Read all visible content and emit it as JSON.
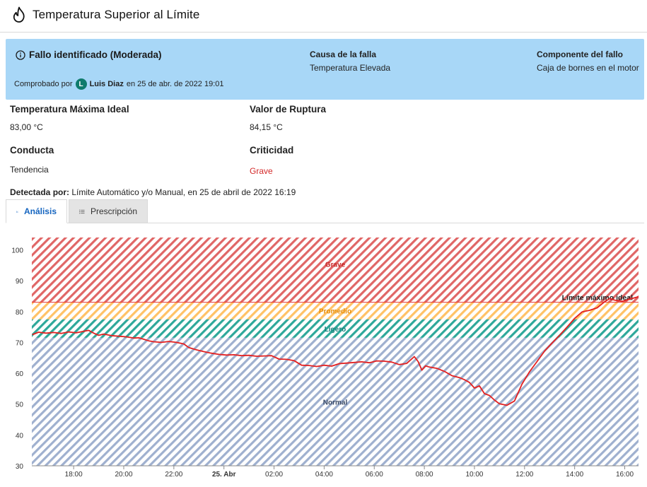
{
  "header": {
    "title": "Temperatura Superior al Límite",
    "icon": "flame-icon"
  },
  "banner": {
    "title": "Fallo identificado (Moderada)",
    "cause_label": "Causa de la falla",
    "cause_value": "Temperatura Elevada",
    "component_label": "Componente del fallo",
    "component_value": "Caja de bornes en el motor",
    "checked_prefix": "Comprobado por",
    "avatar_letter": "L",
    "user_name": "Luis Diaz",
    "checked_suffix": "en 25 de abr. de 2022 19:01",
    "bg_color": "#a8d7f7"
  },
  "fields": {
    "max_temp_label": "Temperatura Máxima Ideal",
    "max_temp_value": "83,00 °C",
    "rupture_label": "Valor de Ruptura",
    "rupture_value": "84,15 °C",
    "behavior_label": "Conducta",
    "behavior_value": "Tendencia",
    "criticality_label": "Criticidad",
    "criticality_value": "Grave"
  },
  "detected": {
    "label": "Detectada por:",
    "value": "Límite Automático y/o Manual, en 25 de abril de 2022 16:19"
  },
  "tabs": [
    {
      "label": "Análisis",
      "active": true
    },
    {
      "label": "Prescripción",
      "active": false
    }
  ],
  "chart_data": {
    "type": "line",
    "title": "",
    "xlabel": "",
    "ylabel": "",
    "ylim": [
      30,
      104
    ],
    "xlim": [
      16.33,
      40.55
    ],
    "yticks": [
      30,
      40,
      50,
      60,
      70,
      80,
      90,
      100
    ],
    "xticks": [
      {
        "x": 18,
        "label": "18:00"
      },
      {
        "x": 20,
        "label": "20:00"
      },
      {
        "x": 22,
        "label": "22:00"
      },
      {
        "x": 24,
        "label": "25. Abr"
      },
      {
        "x": 26,
        "label": "02:00"
      },
      {
        "x": 28,
        "label": "04:00"
      },
      {
        "x": 30,
        "label": "06:00"
      },
      {
        "x": 32,
        "label": "08:00"
      },
      {
        "x": 34,
        "label": "10:00"
      },
      {
        "x": 36,
        "label": "12:00"
      },
      {
        "x": 38,
        "label": "14:00"
      },
      {
        "x": 40,
        "label": "16:00"
      }
    ],
    "bands": [
      {
        "name": "Normal",
        "from": 30,
        "to": 71.5,
        "color": "#9fb0cf",
        "label_color": "#3b4a66"
      },
      {
        "name": "Ligero",
        "from": 71.5,
        "to": 77.5,
        "color": "#2ea89a",
        "label_color": "#15807a"
      },
      {
        "name": "Promedio",
        "from": 77.5,
        "to": 83,
        "color": "#ffc266",
        "label_color": "#e68a00"
      },
      {
        "name": "Grave",
        "from": 83,
        "to": 104,
        "color": "#e06666",
        "label_color": "#c62828"
      }
    ],
    "limit_line": {
      "value": 83,
      "label": "Límite máximo ideal",
      "color": "#e53935"
    },
    "series": [
      {
        "name": "Temperatura",
        "color": "#e32020",
        "x": [
          16.35,
          16.6,
          16.9,
          17.2,
          17.5,
          17.8,
          18.1,
          18.4,
          18.6,
          18.8,
          19.0,
          19.2,
          19.5,
          19.8,
          20.1,
          20.4,
          20.6,
          20.8,
          21.0,
          21.2,
          21.5,
          21.8,
          22.1,
          22.4,
          22.6,
          22.9,
          23.2,
          23.5,
          23.8,
          24.1,
          24.4,
          24.7,
          25.0,
          25.3,
          25.6,
          25.9,
          26.2,
          26.5,
          26.8,
          27.1,
          27.4,
          27.7,
          28.0,
          28.3,
          28.6,
          28.9,
          29.2,
          29.5,
          29.8,
          30.1,
          30.4,
          30.7,
          31.0,
          31.3,
          31.6,
          31.75,
          31.9,
          32.05,
          32.2,
          32.5,
          32.8,
          33.1,
          33.4,
          33.6,
          33.8,
          34.0,
          34.2,
          34.4,
          34.6,
          34.8,
          35.0,
          35.3,
          35.6,
          35.9,
          36.2,
          36.5,
          36.8,
          37.1,
          37.4,
          37.7,
          38.0,
          38.3,
          38.6,
          38.9,
          39.2,
          39.4,
          39.6,
          39.9,
          40.2,
          40.55
        ],
        "y": [
          72.5,
          73.3,
          73.0,
          73.2,
          72.9,
          73.4,
          73.1,
          73.6,
          73.9,
          73.0,
          72.3,
          72.7,
          72.2,
          72.0,
          71.8,
          71.4,
          71.5,
          71.0,
          70.5,
          70.2,
          70.0,
          70.3,
          70.0,
          69.5,
          68.3,
          67.6,
          67.0,
          66.5,
          66.1,
          65.9,
          66.0,
          65.7,
          65.8,
          65.5,
          65.6,
          65.7,
          64.6,
          64.5,
          64.1,
          62.6,
          62.5,
          62.2,
          62.6,
          62.3,
          63.1,
          63.3,
          63.5,
          63.7,
          63.4,
          64.0,
          63.9,
          63.6,
          62.8,
          63.2,
          65.4,
          63.8,
          61.0,
          62.4,
          62.0,
          61.6,
          60.6,
          59.2,
          58.6,
          57.9,
          57.0,
          55.2,
          55.9,
          53.4,
          52.8,
          51.3,
          50.1,
          49.6,
          51.0,
          56.5,
          60.5,
          63.8,
          67.2,
          69.8,
          72.3,
          75.0,
          77.8,
          79.9,
          80.4,
          81.2,
          83.2,
          84.2,
          83.7,
          83.3,
          84.0,
          84.8
        ]
      }
    ]
  }
}
